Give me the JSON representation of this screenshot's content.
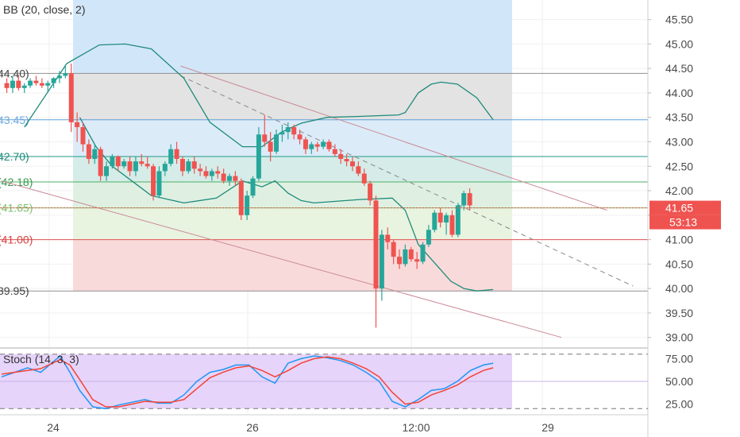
{
  "chart_data": [
    {
      "type": "candlestick",
      "title": "BB (20, close, 2)",
      "x_ticks": [
        "24",
        "26",
        "12:00",
        "29"
      ],
      "y_ticks": [
        "39.00",
        "39.50",
        "40.00",
        "40.50",
        "41.00",
        "41.50",
        "42.00",
        "42.50",
        "43.00",
        "43.50",
        "44.00",
        "44.50",
        "45.00",
        "45.50"
      ],
      "ylim": [
        38.8,
        45.9
      ],
      "x_range": [
        0,
        100
      ],
      "last_price": "41.65",
      "countdown": "53:13",
      "fib_levels": [
        {
          "label": "44.40)",
          "value": 44.4,
          "fill": "#e3e3e3",
          "line": "#8f8f8f",
          "text_color": "#444444"
        },
        {
          "label": "43.45)",
          "value": 43.45,
          "fill": "#dcebf8",
          "line": "#5fa0d8",
          "text_color": "#6fa8dc"
        },
        {
          "label": "42.70)",
          "value": 42.7,
          "fill": "#d5ece8",
          "line": "#1f9a8a",
          "text_color": "#1f8a7a"
        },
        {
          "label": "(42.18)",
          "value": 42.18,
          "fill": "#dff0e2",
          "line": "#4caf63",
          "text_color": "#3a9a50"
        },
        {
          "label": "(41.65)",
          "value": 41.65,
          "fill": "#e8f3e0",
          "line": "#7fbf6a",
          "text_color": "#7fbf6a"
        },
        {
          "label": "(41.00)",
          "value": 41.0,
          "fill": "#f9dada",
          "line": "#e05252",
          "text_color": "#d94040"
        },
        {
          "label": "39.95)",
          "value": 39.95,
          "fill": "#ffffff",
          "line": "#8f8f8f",
          "text_color": "#444444"
        }
      ],
      "fib_top_zone": {
        "value_top": 45.9,
        "fill": "#d2e6f9"
      },
      "channel": {
        "upper": [
          [
            27.5,
            44.55
          ],
          [
            93,
            41.6
          ]
        ],
        "lower": [
          [
            0,
            42.2
          ],
          [
            86,
            39.0
          ]
        ],
        "middle": [
          [
            27.5,
            44.35
          ],
          [
            97,
            40.05
          ]
        ]
      },
      "bb_upper": [
        [
          3.5,
          43.3
        ],
        [
          10,
          44.6
        ],
        [
          15,
          44.98
        ],
        [
          19,
          45.0
        ],
        [
          23,
          44.9
        ],
        [
          28,
          44.3
        ],
        [
          32,
          43.4
        ],
        [
          37,
          42.9
        ],
        [
          40,
          42.9
        ],
        [
          43,
          43.2
        ],
        [
          46,
          43.38
        ],
        [
          50,
          43.5
        ],
        [
          55,
          43.52
        ],
        [
          61,
          43.55
        ],
        [
          62,
          43.6
        ],
        [
          64,
          44.0
        ],
        [
          66,
          44.18
        ],
        [
          67.5,
          44.22
        ],
        [
          70,
          44.18
        ],
        [
          73,
          43.9
        ],
        [
          75.5,
          43.45
        ]
      ],
      "bb_middle": [
        [
          12,
          43.5
        ],
        [
          14.5,
          42.9
        ],
        [
          17,
          42.5
        ],
        [
          20,
          42.2
        ],
        [
          23,
          41.9
        ],
        [
          28,
          41.75
        ],
        [
          33,
          41.85
        ],
        [
          37,
          42.2
        ],
        [
          40,
          42.08
        ],
        [
          42,
          42.2
        ],
        [
          44,
          41.95
        ],
        [
          46,
          41.8
        ],
        [
          48,
          41.75
        ],
        [
          55,
          41.82
        ],
        [
          60,
          41.85
        ],
        [
          62,
          41.6
        ],
        [
          64,
          40.9
        ],
        [
          67,
          40.45
        ],
        [
          69,
          40.15
        ],
        [
          71,
          40.0
        ],
        [
          73,
          39.95
        ],
        [
          75.5,
          39.98
        ]
      ],
      "candles": [
        [
          0.8,
          44.2,
          44.3,
          44.0,
          44.1
        ],
        [
          1.7,
          44.1,
          44.35,
          44.0,
          44.25
        ],
        [
          2.6,
          44.25,
          44.35,
          44.05,
          44.1
        ],
        [
          3.5,
          44.1,
          44.2,
          44.0,
          44.15
        ],
        [
          4.4,
          44.15,
          44.3,
          44.1,
          44.25
        ],
        [
          5.3,
          44.25,
          44.35,
          44.15,
          44.2
        ],
        [
          6.2,
          44.2,
          44.3,
          44.1,
          44.15
        ],
        [
          7.1,
          44.15,
          44.25,
          44.0,
          44.2
        ],
        [
          8.0,
          44.2,
          44.32,
          44.1,
          44.3
        ],
        [
          8.9,
          44.3,
          44.45,
          44.2,
          44.35
        ],
        [
          9.8,
          44.35,
          44.55,
          44.3,
          44.4
        ],
        [
          10.7,
          44.4,
          44.6,
          43.2,
          43.4
        ],
        [
          11.6,
          43.4,
          43.6,
          43.0,
          43.3
        ],
        [
          12.5,
          43.3,
          43.4,
          42.8,
          42.95
        ],
        [
          13.4,
          42.95,
          43.05,
          42.55,
          42.65
        ],
        [
          14.3,
          42.65,
          42.95,
          42.55,
          42.85
        ],
        [
          15.2,
          42.85,
          42.9,
          42.2,
          42.3
        ],
        [
          16.1,
          42.3,
          42.6,
          42.2,
          42.5
        ],
        [
          17.0,
          42.5,
          42.75,
          42.45,
          42.7
        ],
        [
          17.9,
          42.7,
          42.72,
          42.4,
          42.5
        ],
        [
          18.8,
          42.5,
          42.65,
          42.45,
          42.6
        ],
        [
          19.7,
          42.6,
          42.7,
          42.3,
          42.4
        ],
        [
          20.6,
          42.4,
          42.7,
          42.3,
          42.6
        ],
        [
          21.5,
          42.6,
          42.75,
          42.5,
          42.55
        ],
        [
          22.4,
          42.55,
          42.7,
          42.45,
          42.5
        ],
        [
          23.3,
          42.5,
          42.55,
          41.8,
          41.9
        ],
        [
          24.2,
          41.9,
          42.5,
          41.85,
          42.4
        ],
        [
          25.1,
          42.4,
          42.6,
          42.3,
          42.55
        ],
        [
          26.0,
          42.55,
          42.95,
          42.5,
          42.85
        ],
        [
          26.9,
          42.85,
          43.0,
          42.55,
          42.65
        ],
        [
          27.8,
          42.65,
          42.7,
          42.3,
          42.4
        ],
        [
          28.7,
          42.4,
          42.65,
          42.35,
          42.6
        ],
        [
          29.6,
          42.6,
          42.7,
          42.35,
          42.45
        ],
        [
          30.5,
          42.45,
          42.55,
          42.3,
          42.4
        ],
        [
          31.4,
          42.4,
          42.5,
          42.25,
          42.3
        ],
        [
          32.3,
          42.3,
          42.45,
          42.2,
          42.4
        ],
        [
          33.2,
          42.4,
          42.5,
          42.25,
          42.35
        ],
        [
          34.1,
          42.35,
          42.45,
          42.15,
          42.2
        ],
        [
          35.0,
          42.2,
          42.35,
          42.1,
          42.3
        ],
        [
          35.9,
          42.3,
          42.4,
          42.1,
          42.2
        ],
        [
          36.8,
          42.2,
          42.25,
          41.4,
          41.5
        ],
        [
          37.7,
          41.5,
          42.0,
          41.4,
          41.9
        ],
        [
          38.6,
          41.9,
          42.3,
          41.85,
          42.25
        ],
        [
          39.5,
          42.25,
          43.3,
          42.2,
          43.15
        ],
        [
          40.4,
          43.15,
          43.55,
          42.9,
          43.0
        ],
        [
          41.3,
          43.0,
          43.2,
          42.6,
          42.8
        ],
        [
          42.2,
          42.8,
          43.25,
          42.75,
          43.15
        ],
        [
          43.1,
          43.15,
          43.35,
          43.0,
          43.2
        ],
        [
          44.0,
          43.2,
          43.4,
          43.05,
          43.3
        ],
        [
          44.9,
          43.3,
          43.35,
          43.05,
          43.15
        ],
        [
          45.8,
          43.15,
          43.25,
          42.95,
          43.05
        ],
        [
          46.7,
          43.05,
          43.1,
          42.75,
          42.85
        ],
        [
          47.6,
          42.85,
          43.0,
          42.75,
          42.95
        ],
        [
          48.5,
          42.95,
          43.0,
          42.8,
          42.9
        ],
        [
          49.4,
          42.9,
          43.05,
          42.85,
          43.0
        ],
        [
          50.3,
          43.0,
          43.05,
          42.8,
          42.85
        ],
        [
          51.2,
          42.85,
          42.95,
          42.7,
          42.75
        ],
        [
          52.1,
          42.75,
          42.85,
          42.55,
          42.65
        ],
        [
          53.0,
          42.65,
          42.75,
          42.5,
          42.6
        ],
        [
          53.9,
          42.6,
          42.7,
          42.4,
          42.5
        ],
        [
          54.8,
          42.5,
          42.6,
          42.3,
          42.35
        ],
        [
          55.7,
          42.35,
          42.45,
          42.1,
          42.15
        ],
        [
          56.6,
          42.15,
          42.2,
          41.7,
          41.8
        ],
        [
          57.5,
          41.8,
          41.9,
          39.2,
          40.0
        ],
        [
          58.4,
          40.0,
          41.2,
          39.75,
          41.1
        ],
        [
          59.3,
          41.1,
          41.25,
          40.8,
          40.95
        ],
        [
          60.2,
          40.95,
          41.0,
          40.5,
          40.65
        ],
        [
          61.1,
          40.65,
          40.8,
          40.4,
          40.5
        ],
        [
          62.0,
          40.5,
          40.9,
          40.45,
          40.8
        ],
        [
          62.9,
          40.8,
          40.85,
          40.55,
          40.6
        ],
        [
          63.8,
          40.6,
          40.75,
          40.4,
          40.55
        ],
        [
          64.7,
          40.55,
          40.95,
          40.5,
          40.9
        ],
        [
          65.6,
          40.9,
          41.3,
          40.85,
          41.2
        ],
        [
          66.5,
          41.2,
          41.6,
          41.15,
          41.55
        ],
        [
          67.4,
          41.55,
          41.65,
          41.25,
          41.35
        ],
        [
          68.3,
          41.35,
          41.55,
          41.1,
          41.5
        ],
        [
          69.2,
          41.5,
          41.6,
          41.05,
          41.1
        ],
        [
          70.1,
          41.1,
          41.75,
          41.05,
          41.7
        ],
        [
          71.0,
          41.7,
          42.0,
          41.6,
          41.95
        ],
        [
          71.9,
          41.95,
          42.05,
          41.6,
          41.7
        ]
      ],
      "up_color": "#26a69a",
      "down_color": "#ef5350"
    },
    {
      "type": "line",
      "title": "Stoch (14, 3, 3)",
      "y_ticks": [
        "25.00",
        "50.00",
        "75.00"
      ],
      "ylim": [
        15,
        85
      ],
      "band": [
        20,
        80
      ],
      "x_range": [
        0,
        100
      ],
      "series": [
        {
          "color": "#2196f3",
          "points": [
            [
              0,
              55
            ],
            [
              4,
              65
            ],
            [
              6,
              60
            ],
            [
              9,
              78
            ],
            [
              10.5,
              60
            ],
            [
              12,
              40
            ],
            [
              14,
              22
            ],
            [
              16,
              20
            ],
            [
              18,
              24
            ],
            [
              20,
              27
            ],
            [
              22,
              30
            ],
            [
              24,
              26
            ],
            [
              26,
              26
            ],
            [
              28,
              35
            ],
            [
              30,
              50
            ],
            [
              32,
              60
            ],
            [
              34,
              63
            ],
            [
              36,
              68
            ],
            [
              38,
              68
            ],
            [
              40,
              55
            ],
            [
              42,
              48
            ],
            [
              44,
              70
            ],
            [
              46,
              75
            ],
            [
              48,
              78
            ],
            [
              50,
              76
            ],
            [
              52,
              73
            ],
            [
              54,
              68
            ],
            [
              56,
              60
            ],
            [
              58,
              50
            ],
            [
              60,
              28
            ],
            [
              62,
              22
            ],
            [
              64,
              30
            ],
            [
              66,
              40
            ],
            [
              68,
              42
            ],
            [
              70,
              50
            ],
            [
              72,
              62
            ],
            [
              74,
              68
            ],
            [
              75.5,
              70
            ]
          ]
        },
        {
          "color": "#f44336",
          "points": [
            [
              0,
              58
            ],
            [
              4,
              62
            ],
            [
              6,
              64
            ],
            [
              9,
              74
            ],
            [
              10.5,
              68
            ],
            [
              12,
              52
            ],
            [
              14,
              30
            ],
            [
              16,
              22
            ],
            [
              18,
              22
            ],
            [
              20,
              25
            ],
            [
              22,
              28
            ],
            [
              24,
              27
            ],
            [
              26,
              27
            ],
            [
              28,
              30
            ],
            [
              30,
              42
            ],
            [
              32,
              54
            ],
            [
              34,
              60
            ],
            [
              36,
              65
            ],
            [
              38,
              67
            ],
            [
              40,
              62
            ],
            [
              42,
              55
            ],
            [
              44,
              62
            ],
            [
              46,
              70
            ],
            [
              48,
              75
            ],
            [
              50,
              77
            ],
            [
              52,
              75
            ],
            [
              54,
              70
            ],
            [
              56,
              64
            ],
            [
              58,
              55
            ],
            [
              60,
              38
            ],
            [
              62,
              25
            ],
            [
              64,
              27
            ],
            [
              66,
              35
            ],
            [
              68,
              40
            ],
            [
              70,
              46
            ],
            [
              72,
              55
            ],
            [
              74,
              62
            ],
            [
              75.5,
              65
            ]
          ]
        }
      ]
    }
  ]
}
